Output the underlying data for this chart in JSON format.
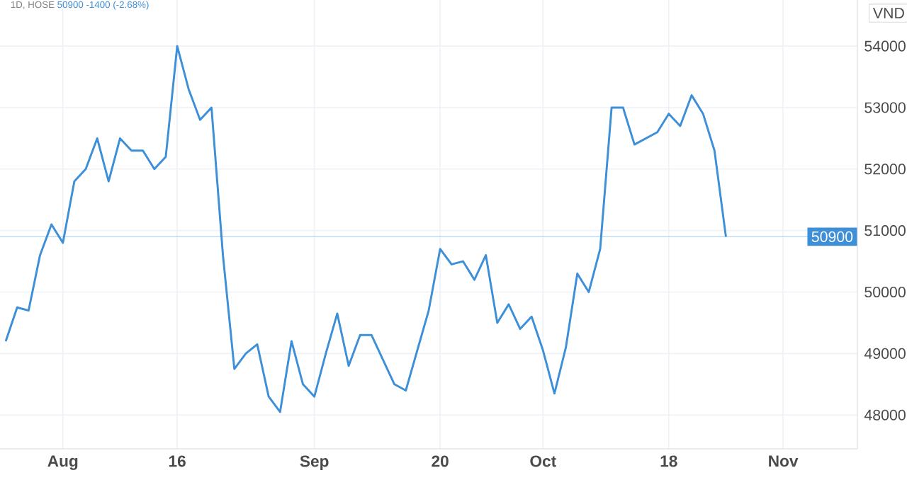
{
  "chart_data": {
    "type": "line",
    "title": "1D, HOSE",
    "subtitle": "50900 -1400 (-2.68%)",
    "ylabel": "VND",
    "categories": [
      null,
      null,
      null,
      null,
      null,
      "Aug",
      null,
      null,
      null,
      null,
      null,
      null,
      null,
      null,
      null,
      "16",
      null,
      null,
      null,
      null,
      null,
      null,
      null,
      null,
      null,
      null,
      null,
      "Sep",
      null,
      null,
      null,
      null,
      null,
      null,
      null,
      null,
      null,
      null,
      "20",
      null,
      null,
      null,
      null,
      null,
      null,
      null,
      null,
      "Oct",
      null,
      null,
      null,
      null,
      null,
      null,
      null,
      null,
      null,
      null,
      "18",
      null,
      null,
      null,
      null,
      null,
      null,
      null,
      null,
      null,
      "Nov",
      null,
      null,
      null,
      null,
      null,
      null
    ],
    "series": [
      {
        "color": "#3d8fd8",
        "values": [
          49200,
          49750,
          49700,
          50600,
          51100,
          50800,
          51800,
          52000,
          52500,
          51800,
          52500,
          52300,
          52300,
          52000,
          52200,
          54000,
          53300,
          52800,
          53000,
          50600,
          48750,
          49000,
          49150,
          48300,
          48050,
          49200,
          48500,
          48300,
          49000,
          49650,
          48800,
          49300,
          49300,
          48900,
          48500,
          48400,
          49050,
          49700,
          50700,
          50450,
          50500,
          50200,
          50600,
          49500,
          49800,
          49400,
          49600,
          49050,
          48350,
          49100,
          50300,
          50000,
          50700,
          53000,
          53000,
          52400,
          52500,
          52600,
          52900,
          52700,
          53200,
          52900,
          52300,
          50900,
          null,
          null,
          null,
          null,
          null,
          null,
          null,
          null,
          null,
          null,
          null
        ]
      }
    ],
    "ylim": [
      47450,
      54750
    ],
    "yticks": [
      48000,
      49000,
      50000,
      51000,
      52000,
      53000,
      54000
    ],
    "grid": true,
    "marker": "none",
    "line_style": "solid",
    "ref_lines": [
      {
        "axis": "y",
        "value": 50900,
        "label": "50900",
        "color": "#b6d8f4"
      }
    ]
  }
}
